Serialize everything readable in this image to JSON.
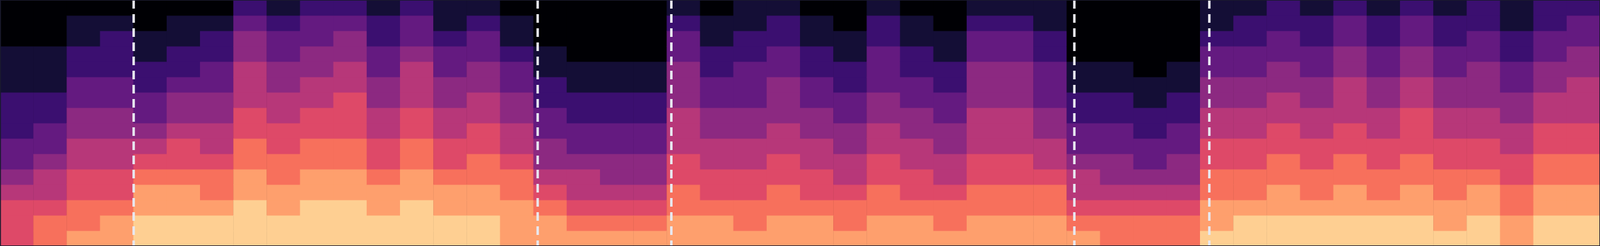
{
  "chart_data": {
    "type": "heatmap",
    "color": "magma",
    "tick_labels": false,
    "xlim": [
      0,
      48
    ],
    "ylim": [
      0,
      16
    ],
    "zlim": [
      0,
      10
    ],
    "boundaries": [
      4.01,
      16.13,
      20.14,
      32.23,
      36.28
    ],
    "values": [
      [
        6,
        6,
        6,
        5,
        4,
        3,
        3,
        2,
        2,
        2,
        1,
        1,
        1,
        0,
        0,
        0
      ],
      [
        7,
        7,
        6,
        5,
        5,
        4,
        3,
        3,
        2,
        2,
        1,
        1,
        1,
        0,
        0,
        0
      ],
      [
        8,
        7,
        7,
        6,
        6,
        5,
        5,
        4,
        4,
        3,
        3,
        2,
        2,
        1,
        1,
        0
      ],
      [
        8,
        8,
        7,
        6,
        6,
        5,
        5,
        4,
        4,
        3,
        3,
        2,
        2,
        2,
        1,
        0
      ],
      [
        9,
        9,
        8,
        8,
        7,
        6,
        5,
        4,
        3,
        3,
        2,
        2,
        1,
        1,
        0,
        0
      ],
      [
        9,
        9,
        8,
        8,
        7,
        6,
        6,
        5,
        4,
        4,
        3,
        2,
        2,
        1,
        1,
        0
      ],
      [
        9,
        9,
        8,
        7,
        7,
        6,
        5,
        5,
        4,
        4,
        3,
        3,
        2,
        2,
        1,
        0
      ],
      [
        9,
        9,
        9,
        8,
        8,
        7,
        7,
        6,
        6,
        5,
        5,
        5,
        4,
        4,
        3,
        2
      ],
      [
        9,
        9,
        8,
        8,
        7,
        7,
        6,
        6,
        5,
        5,
        4,
        4,
        3,
        3,
        2,
        1
      ],
      [
        9,
        9,
        9,
        8,
        8,
        7,
        7,
        6,
        6,
        5,
        5,
        4,
        4,
        3,
        3,
        2
      ],
      [
        9,
        9,
        9,
        8,
        8,
        7,
        7,
        6,
        6,
        6,
        5,
        5,
        4,
        4,
        3,
        2
      ],
      [
        9,
        9,
        8,
        8,
        7,
        6,
        6,
        5,
        5,
        4,
        4,
        3,
        3,
        2,
        2,
        1
      ],
      [
        9,
        9,
        9,
        8,
        8,
        7,
        7,
        6,
        6,
        5,
        5,
        5,
        4,
        3,
        3,
        2
      ],
      [
        9,
        9,
        8,
        8,
        7,
        6,
        6,
        5,
        5,
        4,
        4,
        3,
        3,
        2,
        1,
        1
      ],
      [
        9,
        9,
        8,
        8,
        7,
        7,
        6,
        6,
        5,
        5,
        4,
        4,
        3,
        3,
        2,
        1
      ],
      [
        8,
        8,
        8,
        7,
        7,
        6,
        5,
        5,
        4,
        4,
        3,
        3,
        2,
        1,
        1,
        0
      ],
      [
        8,
        8,
        7,
        6,
        5,
        4,
        4,
        3,
        3,
        2,
        2,
        1,
        1,
        0,
        0,
        0
      ],
      [
        8,
        7,
        6,
        5,
        5,
        4,
        3,
        3,
        2,
        2,
        1,
        1,
        0,
        0,
        0,
        0
      ],
      [
        8,
        7,
        6,
        5,
        4,
        4,
        3,
        3,
        2,
        2,
        1,
        1,
        0,
        0,
        0,
        0
      ],
      [
        8,
        7,
        6,
        5,
        4,
        4,
        3,
        3,
        2,
        2,
        1,
        1,
        0,
        0,
        0,
        0
      ],
      [
        8,
        8,
        7,
        7,
        6,
        6,
        5,
        5,
        5,
        4,
        4,
        4,
        3,
        3,
        2,
        1
      ],
      [
        8,
        8,
        7,
        6,
        6,
        5,
        5,
        4,
        4,
        3,
        3,
        2,
        2,
        1,
        1,
        0
      ],
      [
        8,
        7,
        7,
        6,
        6,
        5,
        5,
        4,
        4,
        3,
        3,
        3,
        2,
        2,
        1,
        1
      ],
      [
        8,
        8,
        7,
        7,
        6,
        6,
        5,
        5,
        4,
        4,
        4,
        3,
        3,
        2,
        2,
        1
      ],
      [
        8,
        8,
        7,
        6,
        6,
        5,
        5,
        4,
        4,
        3,
        3,
        2,
        2,
        1,
        1,
        0
      ],
      [
        8,
        7,
        7,
        6,
        5,
        5,
        4,
        4,
        3,
        3,
        2,
        2,
        1,
        1,
        0,
        0
      ],
      [
        8,
        8,
        7,
        7,
        6,
        6,
        5,
        5,
        4,
        4,
        3,
        3,
        3,
        2,
        2,
        1
      ],
      [
        8,
        8,
        7,
        6,
        6,
        5,
        5,
        4,
        4,
        3,
        3,
        2,
        2,
        1,
        1,
        0
      ],
      [
        8,
        7,
        7,
        6,
        5,
        5,
        4,
        4,
        3,
        3,
        2,
        2,
        1,
        1,
        0,
        0
      ],
      [
        8,
        8,
        7,
        7,
        6,
        6,
        5,
        5,
        5,
        4,
        4,
        4,
        3,
        3,
        2,
        1
      ],
      [
        8,
        8,
        7,
        7,
        6,
        6,
        5,
        5,
        5,
        4,
        4,
        4,
        3,
        3,
        2,
        1
      ],
      [
        8,
        8,
        7,
        7,
        6,
        5,
        5,
        4,
        4,
        3,
        3,
        3,
        2,
        2,
        1,
        1
      ],
      [
        8,
        7,
        6,
        5,
        5,
        4,
        3,
        3,
        2,
        2,
        1,
        1,
        0,
        0,
        0,
        0
      ],
      [
        7,
        7,
        6,
        5,
        4,
        4,
        3,
        3,
        2,
        2,
        1,
        1,
        0,
        0,
        0,
        0
      ],
      [
        7,
        7,
        6,
        5,
        4,
        3,
        3,
        2,
        2,
        1,
        1,
        0,
        0,
        0,
        0,
        0
      ],
      [
        7,
        7,
        6,
        5,
        4,
        4,
        3,
        3,
        2,
        2,
        1,
        1,
        0,
        0,
        0,
        0
      ],
      [
        9,
        8,
        8,
        7,
        7,
        6,
        6,
        5,
        5,
        4,
        4,
        3,
        3,
        2,
        1,
        1
      ],
      [
        9,
        9,
        8,
        7,
        7,
        6,
        6,
        5,
        5,
        4,
        4,
        3,
        3,
        2,
        2,
        1
      ],
      [
        9,
        9,
        8,
        8,
        7,
        7,
        6,
        6,
        5,
        5,
        4,
        4,
        3,
        3,
        2,
        2
      ],
      [
        9,
        9,
        8,
        7,
        7,
        6,
        6,
        5,
        5,
        4,
        4,
        3,
        3,
        2,
        2,
        1
      ],
      [
        9,
        9,
        8,
        8,
        7,
        7,
        6,
        6,
        5,
        5,
        5,
        4,
        4,
        3,
        3,
        2
      ],
      [
        9,
        9,
        8,
        7,
        7,
        6,
        6,
        5,
        5,
        4,
        4,
        3,
        3,
        2,
        2,
        1
      ],
      [
        9,
        9,
        8,
        8,
        7,
        7,
        6,
        6,
        6,
        5,
        5,
        4,
        4,
        3,
        3,
        2
      ],
      [
        9,
        8,
        8,
        7,
        7,
        6,
        6,
        5,
        5,
        4,
        4,
        3,
        3,
        2,
        2,
        1
      ],
      [
        9,
        9,
        8,
        8,
        7,
        6,
        6,
        5,
        5,
        4,
        4,
        4,
        3,
        3,
        2,
        2
      ],
      [
        8,
        8,
        7,
        7,
        6,
        6,
        5,
        5,
        4,
        4,
        3,
        3,
        2,
        2,
        1,
        1
      ],
      [
        9,
        9,
        8,
        8,
        7,
        7,
        6,
        6,
        5,
        5,
        4,
        4,
        3,
        3,
        2,
        2
      ],
      [
        9,
        9,
        8,
        8,
        7,
        7,
        6,
        6,
        5,
        5,
        5,
        4,
        4,
        3,
        3,
        2
      ]
    ]
  }
}
